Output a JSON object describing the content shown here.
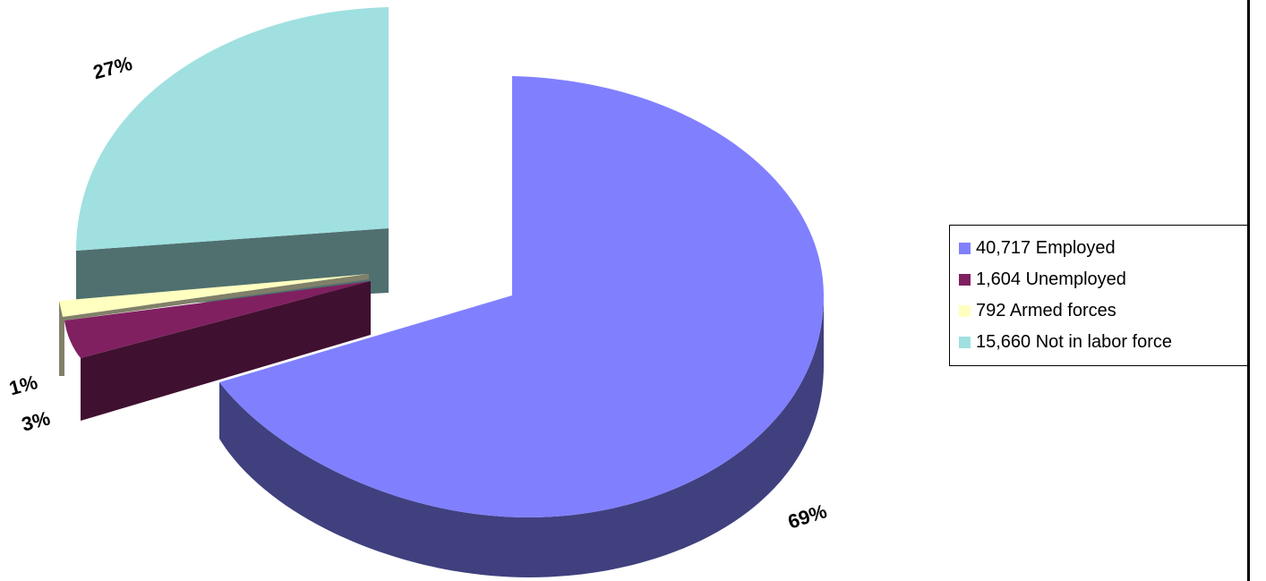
{
  "chart_data": {
    "type": "pie",
    "title": "",
    "categories": [
      "40,717 Employed",
      "1,604 Unemployed",
      "792 Armed forces",
      "15,660 Not in labor force"
    ],
    "values": [
      40717,
      1604,
      792,
      15660
    ],
    "percent_labels": [
      "69%",
      "3%",
      "1%",
      "27%"
    ],
    "colors": {
      "top": [
        "#8080FF",
        "#802060",
        "#FFFFC0",
        "#A0E0E0"
      ],
      "side": [
        "#40407F",
        "#401030",
        "#80806A",
        "#507070"
      ]
    },
    "legend_placement": "right",
    "three_d": true,
    "exploded": [
      false,
      true,
      true,
      true
    ]
  }
}
